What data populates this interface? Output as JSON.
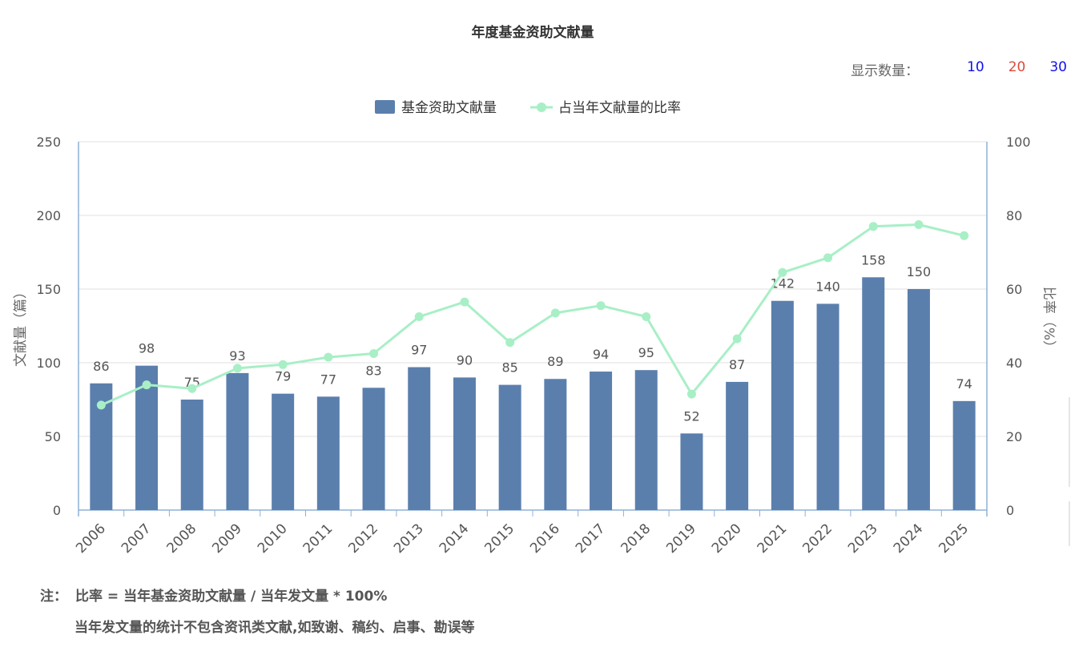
{
  "page": {
    "title": "年度基金资助文献量"
  },
  "count_selector": {
    "label": "显示数量：",
    "options": [
      "10",
      "20",
      "30"
    ]
  },
  "notes": {
    "prefix": "注：",
    "line1": "比率 = 当年基金资助文献量 / 当年发文量 * 100%",
    "line2": "当年发文量的统计不包含资讯类文献,如致谢、稿约、启事、勘误等"
  },
  "colors": {
    "bar": "#5b7fad",
    "line": "#a8efc6",
    "axis": "#8fb0d6",
    "grid": "#e0e0e0"
  },
  "chart_data": {
    "type": "bar",
    "title": "年度基金资助文献量",
    "categories": [
      "2006",
      "2007",
      "2008",
      "2009",
      "2010",
      "2011",
      "2012",
      "2013",
      "2014",
      "2015",
      "2016",
      "2017",
      "2018",
      "2019",
      "2020",
      "2021",
      "2022",
      "2023",
      "2024",
      "2025"
    ],
    "series": [
      {
        "name": "基金资助文献量",
        "type": "bar",
        "axis": "left",
        "values": [
          86,
          98,
          75,
          93,
          79,
          77,
          83,
          97,
          90,
          85,
          89,
          94,
          95,
          52,
          87,
          142,
          140,
          158,
          150,
          74
        ]
      },
      {
        "name": "占当年文献量的比率",
        "type": "line",
        "axis": "right",
        "values": [
          28.5,
          34,
          33,
          38.5,
          39.5,
          41.5,
          42.5,
          52.5,
          56.5,
          45.5,
          53.5,
          55.5,
          52.5,
          31.5,
          46.5,
          64.5,
          68.5,
          77,
          77.5,
          74.5
        ]
      }
    ],
    "ylabel": "文献量（篇）",
    "y2label": "比率（%）",
    "ylim": [
      0,
      250
    ],
    "y2lim": [
      0,
      100
    ],
    "yticks": [
      "0",
      "50",
      "100",
      "150",
      "200",
      "250"
    ],
    "y2ticks": [
      "0",
      "20",
      "40",
      "60",
      "80",
      "100"
    ],
    "grid": true,
    "legend": "top-center"
  }
}
